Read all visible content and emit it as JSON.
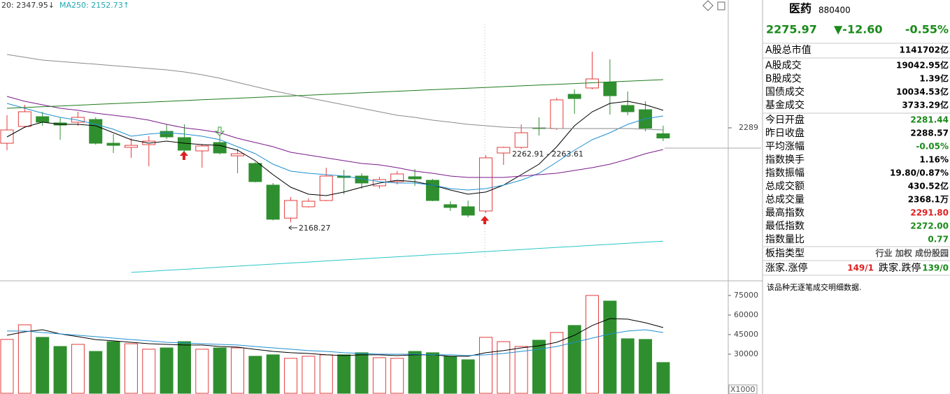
{
  "chart_data": [
    {
      "type": "candlestick",
      "header": [
        "20: 2347.95↓",
        "MA250: 2152.73↑"
      ],
      "header_colors": [
        "#333333",
        "#1fa8b0"
      ],
      "up_color": "#e33b3b",
      "down_color": "#2f8f2f",
      "open": [
        2269.3,
        2290.8,
        2303.3,
        2295.3,
        2296.2,
        2299.7,
        2269.3,
        2264.0,
        2267.5,
        2284.5,
        2276.5,
        2259.5,
        2270.2,
        2253.2,
        2243.4,
        2215.7,
        2173.5,
        2188.0,
        2196.0,
        2227.3,
        2227.3,
        2214.8,
        2220.2,
        2226.4,
        2221.9,
        2190.7,
        2188.0,
        2182.6,
        2256.8,
        2264.0,
        2289.0,
        2288.1,
        2331.9,
        2340.0,
        2347.1,
        2317.6,
        2312.2,
        2281.44
      ],
      "high": [
        2305.1,
        2318.5,
        2309.6,
        2302.4,
        2309.6,
        2302.4,
        2281.0,
        2275.6,
        2278.3,
        2293.5,
        2293.5,
        2268.4,
        2279.2,
        2262.2,
        2245.2,
        2218.4,
        2200.5,
        2198.7,
        2238.0,
        2235.4,
        2230.9,
        2226.4,
        2233.6,
        2236.3,
        2223.7,
        2195.1,
        2196.0,
        2254.1,
        2264.9,
        2293.5,
        2302.4,
        2327.4,
        2338.2,
        2386.4,
        2376.6,
        2335.5,
        2323.0,
        2291.8
      ],
      "low": [
        2260.4,
        2289.0,
        2291.7,
        2273.8,
        2291.7,
        2267.5,
        2256.8,
        2250.6,
        2239.8,
        2274.7,
        2257.7,
        2238.0,
        2255.0,
        2230.9,
        2219.3,
        2170.5,
        2168.27,
        2187.1,
        2195.1,
        2204.1,
        2211.2,
        2211.2,
        2216.6,
        2214.8,
        2195.1,
        2182.6,
        2174.6,
        2179.9,
        2241.6,
        2262.2,
        2279.2,
        2286.3,
        2306.9,
        2338.2,
        2306.0,
        2305.1,
        2284.5,
        2272.0
      ],
      "close": [
        2286.3,
        2309.6,
        2296.2,
        2292.6,
        2302.4,
        2269.3,
        2266.6,
        2266.6,
        2272.0,
        2277.4,
        2260.4,
        2265.8,
        2256.8,
        2255.9,
        2220.2,
        2172.0,
        2196.0,
        2195.1,
        2227.3,
        2225.5,
        2218.4,
        2222.8,
        2230.0,
        2223.7,
        2196.0,
        2187.1,
        2177.3,
        2250.6,
        2264.0,
        2282.7,
        2288.1,
        2324.8,
        2326.5,
        2351.6,
        2330.1,
        2309.6,
        2288.57,
        2275.97
      ],
      "series": [
        {
          "color": "#000000",
          "values": [
            2277.4,
            2289.9,
            2296.2,
            2293.5,
            2293.5,
            2291.7,
            2282.7,
            2273.8,
            2269.3,
            2272.0,
            2269.3,
            2267.5,
            2266.6,
            2260.4,
            2247.0,
            2229.1,
            2213.0,
            2204.1,
            2202.3,
            2206.8,
            2213.0,
            2218.4,
            2221.9,
            2220.2,
            2215.7,
            2209.4,
            2204.1,
            2206.8,
            2215.7,
            2229.1,
            2242.5,
            2264.9,
            2291.7,
            2309.6,
            2320.3,
            2323.0,
            2318.5,
            2311.4
          ]
        },
        {
          "color": "#1f8fd0",
          "values": [
            2320.3,
            2314.0,
            2307.8,
            2302.4,
            2298.8,
            2293.5,
            2287.2,
            2278.3,
            2281.0,
            2282.7,
            2281.0,
            2278.3,
            2273.8,
            2264.9,
            2255.9,
            2242.5,
            2233.6,
            2230.9,
            2229.1,
            2227.3,
            2223.7,
            2220.2,
            2218.4,
            2218.4,
            2215.7,
            2211.2,
            2209.4,
            2211.2,
            2215.7,
            2222.0,
            2230.9,
            2245.2,
            2260.4,
            2273.8,
            2282.7,
            2293.5,
            2300.6,
            2304.2
          ]
        },
        {
          "color": "#7a1a8a",
          "values": [
            2329.2,
            2323.0,
            2318.5,
            2314.0,
            2311.4,
            2307.8,
            2305.1,
            2302.4,
            2298.8,
            2293.5,
            2289.0,
            2286.3,
            2282.7,
            2275.6,
            2270.2,
            2264.9,
            2257.7,
            2254.1,
            2250.6,
            2247.0,
            2243.4,
            2241.6,
            2238.0,
            2233.6,
            2230.9,
            2227.3,
            2225.5,
            2225.5,
            2225.5,
            2227.3,
            2229.1,
            2230.9,
            2234.5,
            2238.0,
            2242.5,
            2248.8,
            2255.9,
            2261.3
          ]
        },
        {
          "color": "#8a8a8a",
          "values": [
            2382.9,
            2379.3,
            2375.7,
            2373.9,
            2372.1,
            2370.4,
            2368.6,
            2366.8,
            2365.0,
            2363.2,
            2360.5,
            2356.9,
            2352.5,
            2347.1,
            2341.7,
            2336.4,
            2331.9,
            2327.4,
            2323.0,
            2318.5,
            2314.0,
            2309.6,
            2305.1,
            2302.4,
            2298.8,
            2296.2,
            2293.5,
            2291.7,
            2289.9,
            2289.0,
            2289.0,
            2288.1,
            2288.1,
            2288.1,
            2288.1,
            2288.1,
            2287.2,
            2286.3
          ]
        },
        {
          "color": "#1d7a1d",
          "values": [
            2314.0,
            2315.0,
            2316.0,
            2317.0,
            2318.0,
            2319.0,
            2319.9,
            2320.9,
            2321.9,
            2322.9,
            2323.9,
            2324.9,
            2325.9,
            2326.9,
            2327.9,
            2328.9,
            2329.8,
            2330.8,
            2331.8,
            2332.8,
            2333.8,
            2334.8,
            2335.8,
            2336.8,
            2337.8,
            2338.8,
            2339.7,
            2340.7,
            2341.7,
            2342.7,
            2343.7,
            2344.7,
            2345.7,
            2346.7,
            2347.7,
            2348.7,
            2349.7,
            2350.7
          ]
        },
        {
          "color": "#2cc4c8",
          "values": [
            null,
            null,
            null,
            null,
            null,
            null,
            null,
            2104.0,
            2105.3,
            2106.7,
            2108.0,
            2109.3,
            2110.7,
            2112.0,
            2113.3,
            2114.7,
            2116.0,
            2117.3,
            2118.7,
            2120.0,
            2121.3,
            2122.7,
            2124.0,
            2125.3,
            2126.7,
            2128.0,
            2129.3,
            2130.7,
            2132.0,
            2133.3,
            2134.7,
            2136.0,
            2137.3,
            2138.7,
            2140.0,
            2141.3,
            2142.7,
            2144.0
          ]
        }
      ],
      "annotations": [
        "2262.91 - 2263.61",
        "2168.27"
      ],
      "ylim": [
        2095.0,
        2452.6
      ],
      "yticks": [
        2289
      ]
    },
    {
      "type": "bar",
      "values": [
        41300,
        52500,
        42900,
        35900,
        37500,
        32100,
        39600,
        38000,
        33800,
        34800,
        39600,
        33800,
        34800,
        34800,
        28400,
        29500,
        26800,
        28400,
        29500,
        29500,
        31100,
        27300,
        26800,
        32100,
        31100,
        28400,
        25700,
        42900,
        39600,
        35900,
        40700,
        46600,
        52000,
        75000,
        70700,
        41800,
        41300,
        23600
      ],
      "series": [
        {
          "color": "#000000",
          "values": [
            44500,
            47100,
            48700,
            45500,
            43400,
            41200,
            40200,
            39100,
            38000,
            37500,
            37000,
            37000,
            35900,
            35400,
            33700,
            32100,
            31100,
            30500,
            29500,
            28900,
            29500,
            29500,
            28900,
            29500,
            29500,
            28400,
            28400,
            31100,
            32700,
            34800,
            36400,
            39100,
            44500,
            52000,
            57300,
            56800,
            54100,
            50400
          ]
        },
        {
          "color": "#1f8fd0",
          "values": [
            47700,
            47700,
            46600,
            45500,
            44500,
            43400,
            42300,
            41200,
            40200,
            39100,
            38600,
            38000,
            37500,
            37000,
            35900,
            34800,
            33800,
            32700,
            32100,
            31100,
            30500,
            30000,
            30000,
            30000,
            29500,
            29500,
            28900,
            29500,
            30500,
            32100,
            33800,
            35900,
            39100,
            42300,
            45500,
            47700,
            48700,
            46600
          ]
        }
      ],
      "y_unit": "X1000",
      "ylim": [
        0,
        84600
      ],
      "yticks": [
        30000,
        45000,
        60000,
        75000
      ]
    }
  ],
  "panel": {
    "name": "医药",
    "code": "880400",
    "price": "2275.97",
    "change": "▼-12.60",
    "change_pct": "-0.55%",
    "quote_color": "#1a8a1a",
    "rows": [
      {
        "label": "A股总市值",
        "value": "1141702亿",
        "color": "#000000"
      },
      {
        "label": "Α股成交",
        "value": "19042.95亿",
        "color": "#000000"
      },
      {
        "label": "Β股成交",
        "value": "1.39亿",
        "color": "#000000"
      },
      {
        "label": "国债成交",
        "value": "10034.53亿",
        "color": "#000000"
      },
      {
        "label": "基金成交",
        "value": "3733.29亿",
        "color": "#000000"
      },
      {
        "label": "今日开盘",
        "value": "2281.44",
        "color": "#1a8a1a"
      },
      {
        "label": "昨日收盘",
        "value": "2288.57",
        "color": "#000000"
      },
      {
        "label": "平均涨幅",
        "value": "-0.05%",
        "color": "#1a8a1a"
      },
      {
        "label": "指数换手",
        "value": "1.16%",
        "color": "#000000"
      },
      {
        "label": "指数振幅",
        "value": "19.80/0.87%",
        "color": "#000000"
      },
      {
        "label": "总成交额",
        "value": "430.52亿",
        "color": "#000000"
      },
      {
        "label": "总成交量",
        "value": "2368.1万",
        "color": "#000000"
      },
      {
        "label": "最高指数",
        "value": "2291.80",
        "color": "#e02020"
      },
      {
        "label": "最低指数",
        "value": "2272.00",
        "color": "#1a8a1a"
      },
      {
        "label": "指数量比",
        "value": "0.77",
        "color": "#1a8a1a"
      },
      {
        "label": "板指类型",
        "value": "行业 加权 成份股园",
        "color": "#555555"
      }
    ],
    "breadth": {
      "up_label": "涨家.涨停",
      "up_value": "149/1",
      "down_label": "跌家.跌停",
      "down_value": "139/0"
    },
    "note": "该品种无逐笔成交明细数据."
  }
}
